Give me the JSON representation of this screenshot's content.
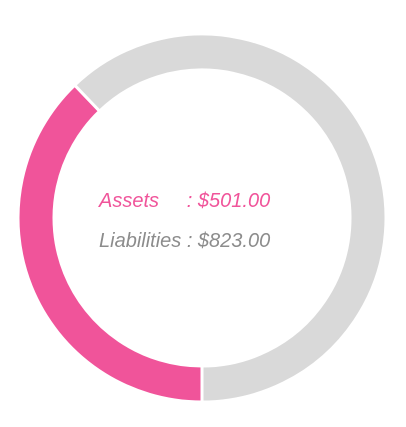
{
  "chart_data": {
    "type": "pie",
    "variant": "donut",
    "series": [
      {
        "name": "Assets",
        "value": 501.0,
        "display": "$501.00",
        "color": "#f0549a"
      },
      {
        "name": "Liabilities",
        "value": 823.0,
        "display": "$823.00",
        "color": "#d9d9d9"
      }
    ],
    "labels": [
      {
        "text": "Assets     : $501.00",
        "color": "#f0549a"
      },
      {
        "text": "Liabilities : $823.00",
        "color": "#8c8c8c"
      }
    ],
    "title": "",
    "legend": "none"
  }
}
